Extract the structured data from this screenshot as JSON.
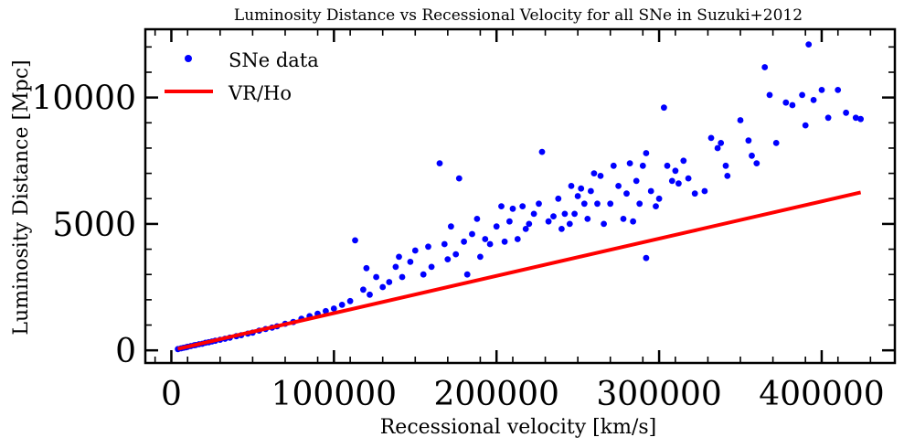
{
  "chart_data": {
    "type": "scatter",
    "title": "Luminosity Distance vs Recessional Velocity for all SNe in Suzuki+2012",
    "xlabel": "Recessional velocity [km/s]",
    "ylabel": "Luminosity Distance [Mpc]",
    "xlim": [
      -16000,
      445000
    ],
    "ylim": [
      -500,
      12700
    ],
    "xticks": [
      0,
      100000,
      200000,
      300000,
      400000
    ],
    "xtick_labels": [
      "0",
      "100000",
      "200000",
      "300000",
      "400000"
    ],
    "yticks": [
      0,
      5000,
      10000
    ],
    "ytick_labels": [
      "0",
      "5000",
      "10000"
    ],
    "grid": false,
    "legend_position": "top-left",
    "series": [
      {
        "name": "SNe data",
        "kind": "scatter",
        "color": "#0000ff",
        "points": [
          [
            4000,
            50
          ],
          [
            6000,
            80
          ],
          [
            7500,
            100
          ],
          [
            9000,
            120
          ],
          [
            10000,
            140
          ],
          [
            12000,
            170
          ],
          [
            14000,
            200
          ],
          [
            15000,
            210
          ],
          [
            17000,
            240
          ],
          [
            19000,
            260
          ],
          [
            21000,
            300
          ],
          [
            23000,
            320
          ],
          [
            25000,
            350
          ],
          [
            27000,
            380
          ],
          [
            30000,
            420
          ],
          [
            33000,
            460
          ],
          [
            36000,
            500
          ],
          [
            40000,
            560
          ],
          [
            43000,
            600
          ],
          [
            47000,
            660
          ],
          [
            50000,
            700
          ],
          [
            54000,
            780
          ],
          [
            58000,
            840
          ],
          [
            62000,
            900
          ],
          [
            65000,
            950
          ],
          [
            70000,
            1050
          ],
          [
            75000,
            1120
          ],
          [
            80000,
            1250
          ],
          [
            85000,
            1350
          ],
          [
            90000,
            1450
          ],
          [
            95000,
            1550
          ],
          [
            100000,
            1650
          ],
          [
            105000,
            1800
          ],
          [
            110000,
            1950
          ],
          [
            113000,
            4350
          ],
          [
            118000,
            2400
          ],
          [
            120000,
            3250
          ],
          [
            122000,
            2200
          ],
          [
            126000,
            2900
          ],
          [
            130000,
            2500
          ],
          [
            134000,
            2700
          ],
          [
            138000,
            3300
          ],
          [
            140000,
            3700
          ],
          [
            142000,
            2900
          ],
          [
            147000,
            3500
          ],
          [
            150000,
            3950
          ],
          [
            155000,
            3000
          ],
          [
            158000,
            4100
          ],
          [
            160000,
            3300
          ],
          [
            165000,
            7400
          ],
          [
            168000,
            4200
          ],
          [
            170000,
            3600
          ],
          [
            172000,
            4900
          ],
          [
            175000,
            3800
          ],
          [
            177000,
            6800
          ],
          [
            180000,
            4300
          ],
          [
            182000,
            3000
          ],
          [
            185000,
            4600
          ],
          [
            188000,
            5200
          ],
          [
            190000,
            3700
          ],
          [
            193000,
            4400
          ],
          [
            196000,
            4200
          ],
          [
            200000,
            4900
          ],
          [
            203000,
            5700
          ],
          [
            205000,
            4300
          ],
          [
            208000,
            5100
          ],
          [
            210000,
            5600
          ],
          [
            213000,
            4400
          ],
          [
            216000,
            5700
          ],
          [
            218000,
            4800
          ],
          [
            220000,
            5000
          ],
          [
            223000,
            5400
          ],
          [
            226000,
            5800
          ],
          [
            228000,
            7850
          ],
          [
            232000,
            5100
          ],
          [
            235000,
            5300
          ],
          [
            238000,
            6000
          ],
          [
            240000,
            4800
          ],
          [
            242000,
            5400
          ],
          [
            245000,
            5000
          ],
          [
            246000,
            6500
          ],
          [
            248000,
            5400
          ],
          [
            250000,
            6100
          ],
          [
            252000,
            6400
          ],
          [
            254000,
            5800
          ],
          [
            256000,
            5200
          ],
          [
            258000,
            6300
          ],
          [
            260000,
            7000
          ],
          [
            262000,
            5800
          ],
          [
            264000,
            6900
          ],
          [
            266000,
            5000
          ],
          [
            270000,
            5800
          ],
          [
            272000,
            7300
          ],
          [
            275000,
            6500
          ],
          [
            278000,
            5200
          ],
          [
            280000,
            6200
          ],
          [
            282000,
            7400
          ],
          [
            284000,
            5100
          ],
          [
            286000,
            6700
          ],
          [
            288000,
            5800
          ],
          [
            290000,
            7300
          ],
          [
            292000,
            7800
          ],
          [
            292000,
            3650
          ],
          [
            295000,
            6300
          ],
          [
            298000,
            5700
          ],
          [
            300000,
            6000
          ],
          [
            303000,
            9600
          ],
          [
            305000,
            7300
          ],
          [
            308000,
            6700
          ],
          [
            310000,
            7100
          ],
          [
            312000,
            6600
          ],
          [
            315000,
            7500
          ],
          [
            318000,
            6800
          ],
          [
            322000,
            6200
          ],
          [
            328000,
            6300
          ],
          [
            332000,
            8400
          ],
          [
            336000,
            8000
          ],
          [
            338000,
            8200
          ],
          [
            341000,
            7300
          ],
          [
            342000,
            6900
          ],
          [
            350000,
            9100
          ],
          [
            355000,
            8300
          ],
          [
            357000,
            7700
          ],
          [
            360000,
            7400
          ],
          [
            365000,
            11200
          ],
          [
            368000,
            10100
          ],
          [
            372000,
            8200
          ],
          [
            378000,
            9800
          ],
          [
            382000,
            9700
          ],
          [
            388000,
            10100
          ],
          [
            390000,
            8900
          ],
          [
            392000,
            12100
          ],
          [
            395000,
            9900
          ],
          [
            400000,
            10300
          ],
          [
            404000,
            9200
          ],
          [
            410000,
            10300
          ],
          [
            415000,
            9400
          ],
          [
            421000,
            9200
          ],
          [
            424000,
            9150
          ]
        ]
      },
      {
        "name": "VR/Ho",
        "kind": "line",
        "color": "#ff0000",
        "x": [
          4000,
          424000
        ],
        "y": [
          57,
          6246
        ]
      }
    ]
  }
}
